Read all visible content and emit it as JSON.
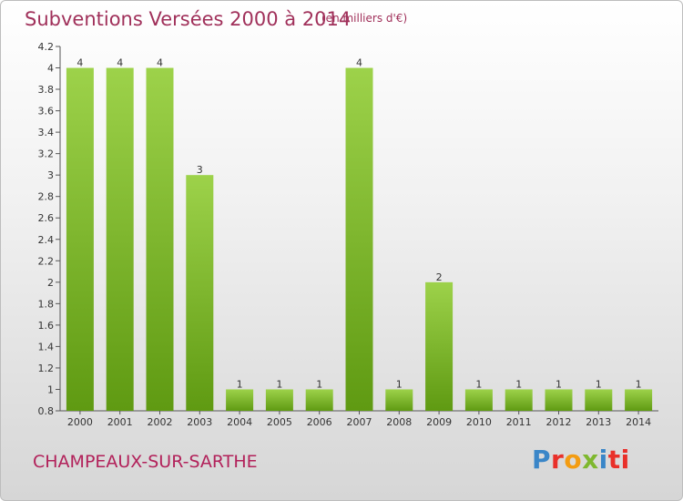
{
  "header": {
    "title": "Subventions Versées 2000 à 2014",
    "unit_note": "(en milliers d'€)"
  },
  "footer": {
    "commune": "CHAMPEAUX-SUR-SARTHE",
    "brand": "Proxiti",
    "brand_colors": [
      "#3a86c8",
      "#e9302a",
      "#f39c12",
      "#7fb82f",
      "#3a86c8",
      "#e9302a",
      "#e9302a"
    ]
  },
  "colors": {
    "bar_light": "#9dd24a",
    "bar_dark": "#5f9a12",
    "text_title": "#a0305a",
    "text_axis": "#333333"
  },
  "chart_data": {
    "type": "bar",
    "categories": [
      "2000",
      "2001",
      "2002",
      "2003",
      "2004",
      "2005",
      "2006",
      "2007",
      "2008",
      "2009",
      "2010",
      "2011",
      "2012",
      "2013",
      "2014"
    ],
    "values": [
      4,
      4,
      4,
      3,
      1,
      1,
      1,
      4,
      1,
      2,
      1,
      1,
      1,
      1,
      1
    ],
    "ylim": [
      0.8,
      4.2
    ],
    "yticks": [
      0.8,
      1,
      1.2,
      1.4,
      1.6,
      1.8,
      2,
      2.2,
      2.4,
      2.6,
      2.8,
      3,
      3.2,
      3.4,
      3.6,
      3.8,
      4,
      4.2
    ],
    "ytick_labels": [
      "0.8",
      "1",
      "1.2",
      "1.4",
      "1.6",
      "1.8",
      "2",
      "2.2",
      "2.4",
      "2.6",
      "2.8",
      "3",
      "3.2",
      "3.4",
      "3.6",
      "3.8",
      "4",
      "4.2"
    ],
    "title": "Subventions Versées 2000 à 2014",
    "xlabel": "",
    "ylabel": "",
    "grid": false,
    "legend": "none"
  }
}
